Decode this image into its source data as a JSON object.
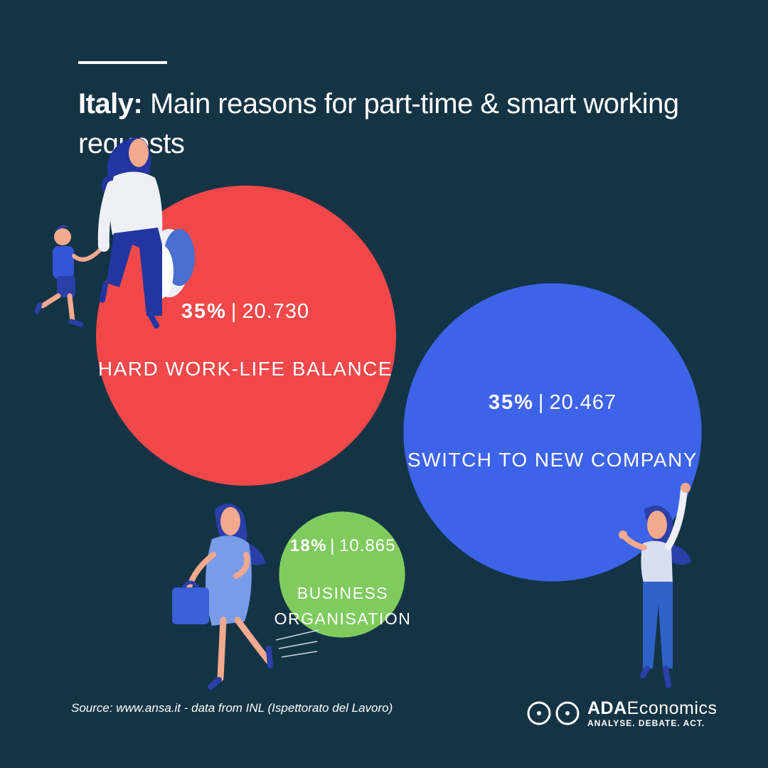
{
  "header": {
    "country": "Italy:",
    "title": "Main reasons for part-time & smart working requests"
  },
  "chart_data": {
    "type": "bubble",
    "series": [
      {
        "label": "HARD WORK-LIFE BALANCE",
        "percent": 35,
        "percent_text": "35%",
        "count_text": "20.730",
        "value": 20730,
        "color": "#f2484a"
      },
      {
        "label": "SWITCH TO NEW COMPANY",
        "percent": 35,
        "percent_text": "35%",
        "count_text": "20.467",
        "value": 20467,
        "color": "#3d63e8"
      },
      {
        "label_lines": [
          "BUSINESS",
          "ORGANISATION"
        ],
        "percent": 18,
        "percent_text": "18%",
        "count_text": "10.865",
        "value": 10865,
        "color": "#7fcb5e"
      }
    ]
  },
  "footer": {
    "source": "Source: www.ansa.it - data from INL (Ispettorato del Lavoro)",
    "brand_bold": "ADA",
    "brand_thin": "Economics",
    "tagline": "ANALYSE. DEBATE. ACT."
  }
}
